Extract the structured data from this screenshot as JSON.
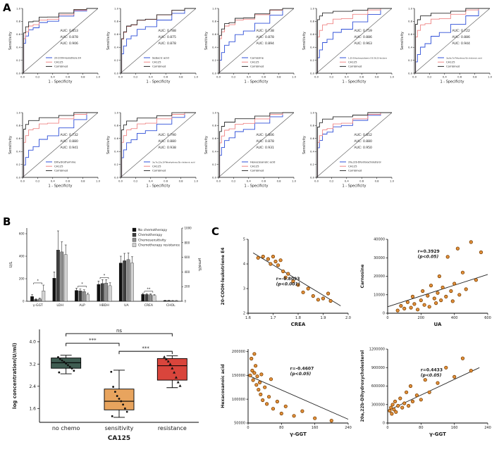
{
  "panel_labels": {
    "a": "A",
    "b": "B",
    "c": "C"
  },
  "chart_data": [
    {
      "id": "roc_grid",
      "type": "line",
      "description": "ROC curves for metabolite, CA125 and combined classifiers",
      "x_label": "1 - Specificity",
      "y_label": "Sensitivity",
      "axis_ticks": [
        "0.0",
        "0.2",
        "0.4",
        "0.6",
        "0.8",
        "1.0"
      ],
      "auc_prefix": "AUC:",
      "legend_ca125": "CA125",
      "legend_combined": "Combined",
      "colors": {
        "metabolite": "#2e4fd8",
        "ca125": "#ef8585",
        "combined": "#2b2b2b",
        "combined_text": "#2b2b2b",
        "diagonal": "#555555"
      },
      "plots": [
        {
          "metabolite": "20-COOH-leukotriene E4",
          "auc_metabolite": 0.853,
          "auc_ca125": 0.878,
          "auc_combined": 0.906
        },
        {
          "metabolite": "Sebacic acid",
          "auc_metabolite": 0.788,
          "auc_ca125": 0.875,
          "auc_combined": 0.878
        },
        {
          "metabolite": "Carnosine",
          "auc_metabolite": 0.738,
          "auc_ca125": 0.878,
          "auc_combined": 0.894
        },
        {
          "metabolite": "1,25-Dihydroxyvitamin D3-26,23-lactone",
          "auc_metabolite": 0.759,
          "auc_ca125": 0.886,
          "auc_combined": 0.963
        },
        {
          "metabolite": "3a,6a,7a-Trihydroxy-5b-cholanoic acid",
          "auc_metabolite": 0.722,
          "auc_ca125": 0.886,
          "auc_combined": 0.944
        },
        {
          "metabolite": "Dihydrothymine",
          "auc_metabolite": 0.732,
          "auc_ca125": 0.88,
          "auc_combined": 0.941
        },
        {
          "metabolite": "3a,7a,12a,19-Tetrahydroxy-5b-cholanoic acid",
          "auc_metabolite": 0.79,
          "auc_ca125": 0.88,
          "auc_combined": 0.938
        },
        {
          "metabolite": "Hexacosanoic acid",
          "auc_metabolite": 0.806,
          "auc_ca125": 0.878,
          "auc_combined": 0.931
        },
        {
          "metabolite": "20a,22b-Dihydroxycholesterol",
          "auc_metabolite": 0.852,
          "auc_ca125": 0.88,
          "auc_combined": 0.95
        }
      ]
    },
    {
      "id": "clinical_bars",
      "type": "bar",
      "categories": [
        "γ-GGT",
        "LDH",
        "ALP",
        "HBDH",
        "UA",
        "CREA",
        "CHOL"
      ],
      "y_left": {
        "label": "U/L",
        "max": 650,
        "ticks": [
          0,
          200,
          400,
          600
        ]
      },
      "y_right": {
        "label": "μmol/L",
        "max": 1000,
        "ticks": [
          0,
          200,
          400,
          600,
          800,
          1000
        ]
      },
      "series": [
        {
          "label": "No chemotherapy",
          "color": "#111111",
          "values": [
            42,
            205,
            96,
            150,
            340,
            62,
            6
          ],
          "errors": [
            16,
            55,
            20,
            30,
            60,
            8,
            2
          ]
        },
        {
          "label": "Chemotherapy",
          "color": "#3f3f3f",
          "values": [
            16,
            455,
            92,
            158,
            360,
            60,
            6
          ],
          "errors": [
            6,
            170,
            16,
            34,
            65,
            8,
            2
          ]
        },
        {
          "label": "Chemosensitivity",
          "color": "#8e8e8e",
          "values": [
            20,
            438,
            86,
            162,
            370,
            58,
            5
          ],
          "errors": [
            8,
            90,
            15,
            30,
            60,
            7,
            2
          ]
        },
        {
          "label": "Chemotherapy resistance",
          "color": "#d2d2d2",
          "values": [
            92,
            415,
            60,
            138,
            340,
            52,
            5
          ],
          "errors": [
            52,
            85,
            12,
            26,
            55,
            7,
            2
          ]
        }
      ],
      "significance": [
        {
          "category_index": 0,
          "label": "*"
        },
        {
          "category_index": 2,
          "label": "*"
        },
        {
          "category_index": 3,
          "label": "*"
        },
        {
          "category_index": 5,
          "label": "**"
        }
      ]
    },
    {
      "id": "ca125_box",
      "type": "box",
      "y_label": "log concentration(U/ml)",
      "x_label": "CA125",
      "y_ticks": [
        1.6,
        2.4,
        3.2,
        4.0
      ],
      "y_range": [
        1.1,
        4.45
      ],
      "groups": [
        {
          "label": "no chemo",
          "color": "#3f5d52",
          "low": 2.85,
          "q1": 3.05,
          "median": 3.25,
          "q3": 3.42,
          "high": 3.52,
          "marker": "circle",
          "points": [
            3.45,
            3.38,
            3.33,
            3.28,
            3.22,
            3.16,
            3.1,
            3.04,
            2.96,
            2.9
          ]
        },
        {
          "label": "sensitivity",
          "color": "#e8a45e",
          "low": 1.28,
          "q1": 1.55,
          "median": 1.86,
          "q3": 2.3,
          "high": 2.98,
          "marker": "circle",
          "points": [
            2.92,
            2.38,
            2.2,
            2.05,
            1.95,
            1.86,
            1.74,
            1.6,
            1.48,
            1.32
          ]
        },
        {
          "label": "resistance",
          "color": "#d9453c",
          "low": 2.35,
          "q1": 2.62,
          "median": 3.14,
          "q3": 3.4,
          "high": 3.5,
          "marker": "triangle",
          "points": [
            3.46,
            3.38,
            3.3,
            3.2,
            3.05,
            2.9,
            2.72,
            2.55,
            2.42
          ]
        }
      ],
      "brackets": [
        {
          "from": 0,
          "to": 2,
          "y": 4.3,
          "label": "ns"
        },
        {
          "from": 0,
          "to": 1,
          "y": 3.95,
          "label": "***"
        },
        {
          "from": 1,
          "to": 2,
          "y": 3.66,
          "label": "***"
        }
      ]
    },
    {
      "id": "scatter_crea",
      "type": "scatter",
      "x_label": "CREA",
      "y_label": "20-COOH-leukotriene E4",
      "r_text": "r=-0.8093",
      "p_text": "(p<0.001)",
      "ann_pos": [
        0.28,
        0.55
      ],
      "x_range": [
        1.6,
        2.0
      ],
      "y_range": [
        2,
        5
      ],
      "x_ticks": [
        "1.6",
        "1.7",
        "1.8",
        "1.9",
        "2.0"
      ],
      "y_ticks": [
        "2",
        "3",
        "4",
        "5"
      ],
      "point_fill": "#e3903a",
      "point_stroke": "#7a3f00",
      "fit_line": [
        [
          1.62,
          4.45
        ],
        [
          1.97,
          2.3
        ]
      ],
      "points": [
        [
          1.64,
          4.25
        ],
        [
          1.66,
          4.3
        ],
        [
          1.68,
          4.2
        ],
        [
          1.69,
          4.0
        ],
        [
          1.7,
          4.3
        ],
        [
          1.71,
          4.1
        ],
        [
          1.72,
          3.95
        ],
        [
          1.73,
          4.15
        ],
        [
          1.74,
          3.7
        ],
        [
          1.75,
          3.45
        ],
        [
          1.76,
          3.6
        ],
        [
          1.78,
          3.3
        ],
        [
          1.8,
          3.15
        ],
        [
          1.82,
          2.85
        ],
        [
          1.84,
          3.0
        ],
        [
          1.86,
          2.7
        ],
        [
          1.88,
          2.55
        ],
        [
          1.9,
          2.6
        ],
        [
          1.92,
          2.8
        ],
        [
          1.93,
          2.5
        ]
      ]
    },
    {
      "id": "scatter_ua",
      "type": "scatter",
      "x_label": "UA",
      "y_label": "Carnosine",
      "r_text": "r=0.3929",
      "p_text": "(p<0.05)",
      "ann_pos": [
        0.3,
        0.18
      ],
      "x_range": [
        0,
        600
      ],
      "y_range": [
        0,
        40000
      ],
      "x_ticks": [
        "0",
        "200",
        "400",
        "600"
      ],
      "y_ticks": [
        "0",
        "10000",
        "20000",
        "30000",
        "40000"
      ],
      "point_fill": "#e3903a",
      "point_stroke": "#7a3f00",
      "fit_line": [
        [
          0,
          3500
        ],
        [
          600,
          21000
        ]
      ],
      "points": [
        [
          60,
          1500
        ],
        [
          80,
          4000
        ],
        [
          100,
          2500
        ],
        [
          120,
          6000
        ],
        [
          140,
          3000
        ],
        [
          150,
          9000
        ],
        [
          160,
          5000
        ],
        [
          180,
          2000
        ],
        [
          200,
          7000
        ],
        [
          210,
          12000
        ],
        [
          220,
          4500
        ],
        [
          240,
          9500
        ],
        [
          250,
          3500
        ],
        [
          260,
          15000
        ],
        [
          280,
          8000
        ],
        [
          290,
          5500
        ],
        [
          300,
          11000
        ],
        [
          310,
          20000
        ],
        [
          320,
          7000
        ],
        [
          330,
          14000
        ],
        [
          350,
          9000
        ],
        [
          360,
          30500
        ],
        [
          380,
          12000
        ],
        [
          390,
          6500
        ],
        [
          400,
          16000
        ],
        [
          420,
          35000
        ],
        [
          430,
          10000
        ],
        [
          450,
          22000
        ],
        [
          470,
          13000
        ],
        [
          500,
          38500
        ],
        [
          530,
          18000
        ],
        [
          560,
          33000
        ]
      ]
    },
    {
      "id": "scatter_ggt_hex",
      "type": "scatter",
      "x_label": "γ-GGT",
      "y_label": "Hexacosanoic acid",
      "r_text": "r=-0.4607",
      "p_text": "(p<0.05)",
      "ann_pos": [
        0.42,
        0.28
      ],
      "x_range": [
        0,
        240
      ],
      "y_range": [
        50000,
        205000
      ],
      "x_ticks": [
        "0",
        "80",
        "160",
        "240"
      ],
      "y_ticks": [
        "50000",
        "100000",
        "150000",
        "200000"
      ],
      "point_fill": "#e3903a",
      "point_stroke": "#7a3f00",
      "fit_line": [
        [
          0,
          150000
        ],
        [
          240,
          58000
        ]
      ],
      "points": [
        [
          5,
          150000
        ],
        [
          8,
          185000
        ],
        [
          10,
          160000
        ],
        [
          12,
          140000
        ],
        [
          15,
          155000
        ],
        [
          15,
          195000
        ],
        [
          18,
          170000
        ],
        [
          20,
          130000
        ],
        [
          22,
          148000
        ],
        [
          25,
          120000
        ],
        [
          28,
          135000
        ],
        [
          30,
          110000
        ],
        [
          32,
          152000
        ],
        [
          35,
          98000
        ],
        [
          40,
          125000
        ],
        [
          45,
          90000
        ],
        [
          50,
          105000
        ],
        [
          55,
          142000
        ],
        [
          60,
          80000
        ],
        [
          70,
          95000
        ],
        [
          80,
          70000
        ],
        [
          90,
          85000
        ],
        [
          110,
          65000
        ],
        [
          130,
          75000
        ],
        [
          160,
          60000
        ],
        [
          200,
          55000
        ]
      ]
    },
    {
      "id": "scatter_ggt_chol",
      "type": "scatter",
      "x_label": "γ-GGT",
      "y_label": "20a,22b-Dihydroxycholesterol",
      "r_text": "r=0.4433",
      "p_text": "(p<0.05)",
      "ann_pos": [
        0.33,
        0.3
      ],
      "x_range": [
        0,
        240
      ],
      "y_range": [
        0,
        1200000
      ],
      "x_ticks": [
        "0",
        "80",
        "160",
        "240"
      ],
      "y_ticks": [
        "0",
        "300000",
        "600000",
        "900000",
        "1200000"
      ],
      "point_fill": "#e3903a",
      "point_stroke": "#7a3f00",
      "fit_line": [
        [
          0,
          200000
        ],
        [
          220,
          900000
        ]
      ],
      "points": [
        [
          5,
          200000
        ],
        [
          8,
          250000
        ],
        [
          10,
          150000
        ],
        [
          12,
          300000
        ],
        [
          15,
          220000
        ],
        [
          18,
          350000
        ],
        [
          20,
          180000
        ],
        [
          25,
          280000
        ],
        [
          30,
          400000
        ],
        [
          35,
          250000
        ],
        [
          40,
          320000
        ],
        [
          45,
          500000
        ],
        [
          50,
          280000
        ],
        [
          55,
          600000
        ],
        [
          60,
          350000
        ],
        [
          70,
          450000
        ],
        [
          80,
          380000
        ],
        [
          90,
          700000
        ],
        [
          100,
          500000
        ],
        [
          120,
          650000
        ],
        [
          140,
          900000
        ],
        [
          160,
          750000
        ],
        [
          180,
          1050000
        ],
        [
          200,
          850000
        ]
      ]
    }
  ]
}
